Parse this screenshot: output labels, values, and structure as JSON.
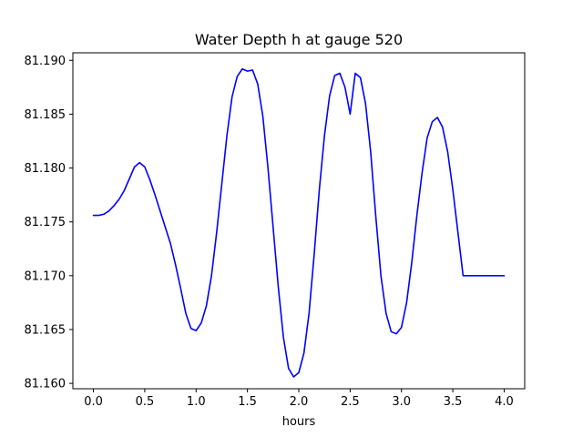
{
  "chart_data": {
    "type": "line",
    "title": "Water Depth h at gauge 520",
    "xlabel": "hours",
    "ylabel": "",
    "xlim": [
      -0.2,
      4.2
    ],
    "ylim": [
      81.1595,
      81.1907
    ],
    "xticks": [
      0.0,
      0.5,
      1.0,
      1.5,
      2.0,
      2.5,
      3.0,
      3.5,
      4.0
    ],
    "xtick_labels": [
      "0.0",
      "0.5",
      "1.0",
      "1.5",
      "2.0",
      "2.5",
      "3.0",
      "3.5",
      "4.0"
    ],
    "yticks": [
      81.16,
      81.165,
      81.17,
      81.175,
      81.18,
      81.185,
      81.19
    ],
    "ytick_labels": [
      "81.160",
      "81.165",
      "81.170",
      "81.175",
      "81.180",
      "81.185",
      "81.190"
    ],
    "grid": false,
    "series": [
      {
        "color": "#0000ff",
        "x": [
          0.0,
          0.05,
          0.1,
          0.15,
          0.2,
          0.25,
          0.3,
          0.35,
          0.4,
          0.45,
          0.5,
          0.55,
          0.6,
          0.65,
          0.7,
          0.75,
          0.8,
          0.85,
          0.9,
          0.95,
          1.0,
          1.05,
          1.1,
          1.15,
          1.2,
          1.25,
          1.3,
          1.35,
          1.4,
          1.45,
          1.5,
          1.55,
          1.6,
          1.65,
          1.7,
          1.75,
          1.8,
          1.85,
          1.9,
          1.95,
          2.0,
          2.05,
          2.1,
          2.15,
          2.2,
          2.25,
          2.3,
          2.35,
          2.4,
          2.45,
          2.5,
          2.55,
          2.6,
          2.65,
          2.7,
          2.75,
          2.8,
          2.85,
          2.9,
          2.95,
          3.0,
          3.05,
          3.1,
          3.15,
          3.2,
          3.25,
          3.3,
          3.35,
          3.4,
          3.45,
          3.5,
          3.55,
          3.6,
          3.65,
          3.7,
          3.75,
          3.8,
          3.85,
          3.9,
          3.95,
          4.0
        ],
        "y": [
          81.1756,
          81.1756,
          81.1757,
          81.176,
          81.1765,
          81.1771,
          81.1779,
          81.179,
          81.1801,
          81.1805,
          81.1801,
          81.1789,
          81.1775,
          81.176,
          81.1745,
          81.173,
          81.171,
          81.1688,
          81.1665,
          81.1651,
          81.1649,
          81.1656,
          81.1672,
          81.17,
          81.174,
          81.1785,
          81.183,
          81.1866,
          81.1885,
          81.1892,
          81.189,
          81.1891,
          81.1878,
          81.1848,
          81.18,
          81.1745,
          81.169,
          81.1643,
          81.1614,
          81.1606,
          81.161,
          81.1628,
          81.1665,
          81.172,
          81.178,
          81.183,
          81.1867,
          81.1886,
          81.1888,
          81.1875,
          81.185,
          81.1888,
          81.1884,
          81.186,
          81.1815,
          81.1755,
          81.17,
          81.1665,
          81.1648,
          81.1646,
          81.1652,
          81.1675,
          81.1712,
          81.1756,
          81.1795,
          81.1828,
          81.1843,
          81.1847,
          81.1838,
          81.1815,
          81.178,
          81.174,
          81.17,
          81.17,
          81.17,
          81.17,
          81.17,
          81.17,
          81.17,
          81.17,
          81.17
        ]
      }
    ]
  }
}
